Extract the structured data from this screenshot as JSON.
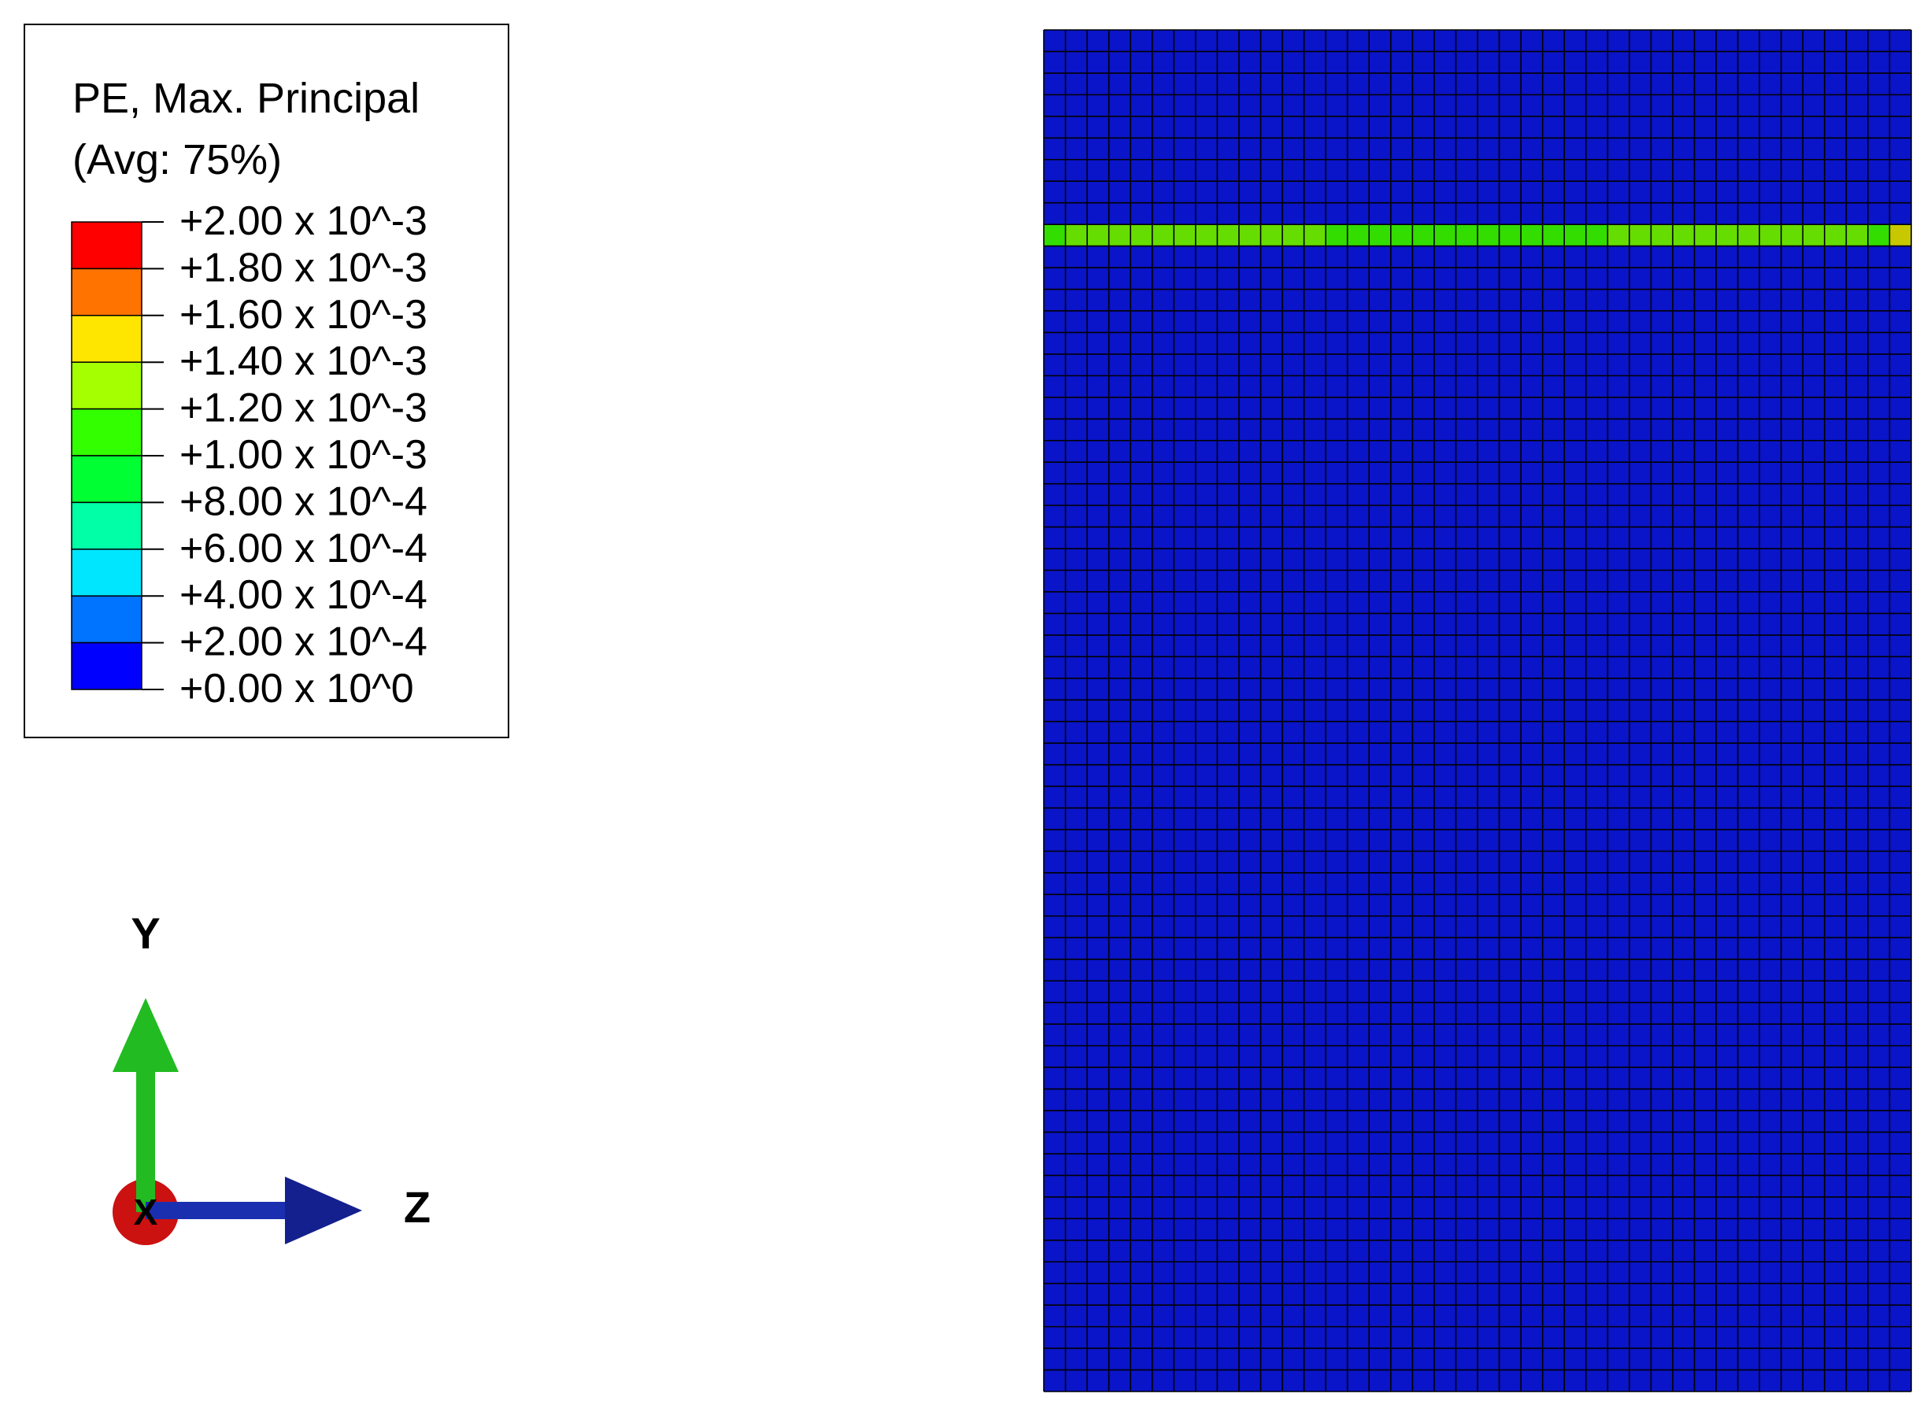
{
  "legend": {
    "title": "PE, Max. Principal",
    "subtitle": "(Avg: 75%)",
    "labels": [
      "+2.00 x 10^-3",
      "+1.80 x 10^-3",
      "+1.60 x 10^-3",
      "+1.40 x 10^-3",
      "+1.20 x 10^-3",
      "+1.00 x 10^-3",
      "+8.00 x 10^-4",
      "+6.00 x 10^-4",
      "+4.00 x 10^-4",
      "+2.00 x 10^-4",
      "+0.00 x 10^0"
    ],
    "colors": [
      "#ff0000",
      "#ff7300",
      "#ffe600",
      "#a6ff00",
      "#33ff00",
      "#00ff33",
      "#00ffa6",
      "#00e6ff",
      "#0073ff",
      "#0000ff"
    ]
  },
  "triad": {
    "y": "Y",
    "z": "Z",
    "x": "X"
  }
}
